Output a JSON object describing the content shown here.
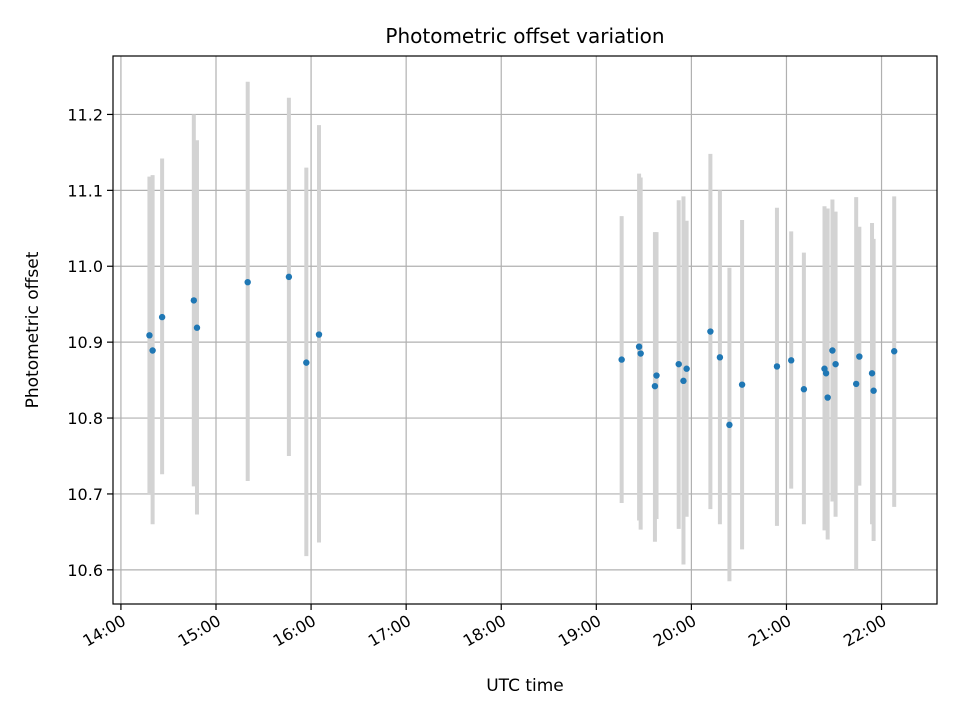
{
  "chart_data": {
    "type": "scatter",
    "title": "Photometric offset variation",
    "xlabel": "UTC time",
    "ylabel": "Photometric offset",
    "xlim": [
      "13:55",
      "22:35"
    ],
    "ylim": [
      10.555,
      11.277
    ],
    "grid": true,
    "x_ticks": [
      "14:00",
      "15:00",
      "16:00",
      "17:00",
      "18:00",
      "19:00",
      "20:00",
      "21:00",
      "22:00"
    ],
    "y_ticks": [
      10.6,
      10.7,
      10.8,
      10.9,
      11.0,
      11.1,
      11.2
    ],
    "y_tick_labels": [
      "10.6",
      "10.7",
      "10.8",
      "10.9",
      "11.0",
      "11.1",
      "11.2"
    ],
    "colors": {
      "point": "#1f77b4",
      "errorbar": "#d3d3d3",
      "grid": "#b0b0b0"
    },
    "series": [
      {
        "points": [
          {
            "x": "14:18",
            "y": 10.909,
            "lo": 10.7,
            "hi": 11.118
          },
          {
            "x": "14:20",
            "y": 10.889,
            "lo": 10.66,
            "hi": 11.12
          },
          {
            "x": "14:26",
            "y": 10.933,
            "lo": 10.726,
            "hi": 11.142
          },
          {
            "x": "14:46",
            "y": 10.955,
            "lo": 10.71,
            "hi": 11.2
          },
          {
            "x": "14:48",
            "y": 10.919,
            "lo": 10.673,
            "hi": 11.166
          },
          {
            "x": "15:20",
            "y": 10.979,
            "lo": 10.717,
            "hi": 11.243
          },
          {
            "x": "15:46",
            "y": 10.986,
            "lo": 10.75,
            "hi": 11.222
          },
          {
            "x": "15:57",
            "y": 10.873,
            "lo": 10.618,
            "hi": 11.13
          },
          {
            "x": "16:05",
            "y": 10.91,
            "lo": 10.636,
            "hi": 11.186
          },
          {
            "x": "19:16",
            "y": 10.877,
            "lo": 10.688,
            "hi": 11.066
          },
          {
            "x": "19:27",
            "y": 10.894,
            "lo": 10.665,
            "hi": 11.122
          },
          {
            "x": "19:28",
            "y": 10.885,
            "lo": 10.653,
            "hi": 11.117
          },
          {
            "x": "19:37",
            "y": 10.842,
            "lo": 10.637,
            "hi": 11.045
          },
          {
            "x": "19:38",
            "y": 10.856,
            "lo": 10.667,
            "hi": 11.045
          },
          {
            "x": "19:52",
            "y": 10.871,
            "lo": 10.654,
            "hi": 11.087
          },
          {
            "x": "19:55",
            "y": 10.849,
            "lo": 10.607,
            "hi": 11.092
          },
          {
            "x": "19:57",
            "y": 10.865,
            "lo": 10.67,
            "hi": 11.06
          },
          {
            "x": "20:12",
            "y": 10.914,
            "lo": 10.68,
            "hi": 11.148
          },
          {
            "x": "20:18",
            "y": 10.88,
            "lo": 10.66,
            "hi": 11.1
          },
          {
            "x": "20:24",
            "y": 10.791,
            "lo": 10.585,
            "hi": 10.998
          },
          {
            "x": "20:32",
            "y": 10.844,
            "lo": 10.627,
            "hi": 11.061
          },
          {
            "x": "20:54",
            "y": 10.868,
            "lo": 10.658,
            "hi": 11.077
          },
          {
            "x": "21:03",
            "y": 10.876,
            "lo": 10.707,
            "hi": 11.046
          },
          {
            "x": "21:11",
            "y": 10.838,
            "lo": 10.66,
            "hi": 11.018
          },
          {
            "x": "21:24",
            "y": 10.865,
            "lo": 10.652,
            "hi": 11.079
          },
          {
            "x": "21:25",
            "y": 10.859,
            "lo": 10.66,
            "hi": 11.06
          },
          {
            "x": "21:26",
            "y": 10.827,
            "lo": 10.64,
            "hi": 11.076
          },
          {
            "x": "21:29",
            "y": 10.889,
            "lo": 10.69,
            "hi": 11.088
          },
          {
            "x": "21:31",
            "y": 10.871,
            "lo": 10.67,
            "hi": 11.072
          },
          {
            "x": "21:44",
            "y": 10.845,
            "lo": 10.6,
            "hi": 11.091
          },
          {
            "x": "21:46",
            "y": 10.881,
            "lo": 10.711,
            "hi": 11.052
          },
          {
            "x": "21:54",
            "y": 10.859,
            "lo": 10.66,
            "hi": 11.057
          },
          {
            "x": "21:55",
            "y": 10.836,
            "lo": 10.638,
            "hi": 11.036
          },
          {
            "x": "22:08",
            "y": 10.888,
            "lo": 10.683,
            "hi": 11.092
          }
        ]
      }
    ]
  }
}
